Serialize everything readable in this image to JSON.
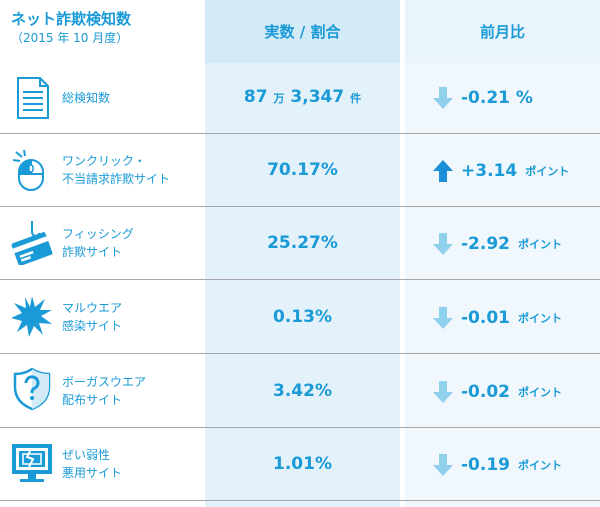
{
  "header": {
    "title": "ネット詐欺検知数",
    "subtitle": "（2015 年 10 月度）",
    "col2": "実数 / 割合",
    "col3": "前月比"
  },
  "rows": [
    {
      "label_line1": "総検知数",
      "label_line2": "",
      "icon": "document-icon",
      "value_main": "87",
      "value_unit1": "万",
      "value_rest": "3,347",
      "value_unit2": "件",
      "direction": "down",
      "change": "-0.21 %",
      "change_unit": ""
    },
    {
      "label_line1": "ワンクリック・",
      "label_line2": "不当請求詐欺サイト",
      "icon": "mouse-click-icon",
      "value": "70.17%",
      "direction": "up",
      "change": "+3.14",
      "change_unit": "ポイント"
    },
    {
      "label_line1": "フィッシング",
      "label_line2": "詐欺サイト",
      "icon": "credit-card-hook-icon",
      "value": "25.27%",
      "direction": "down",
      "change": "-2.92",
      "change_unit": "ポイント"
    },
    {
      "label_line1": "マルウエア",
      "label_line2": "感染サイト",
      "icon": "malware-burst-icon",
      "value": "0.13%",
      "direction": "down",
      "change": "-0.01",
      "change_unit": "ポイント"
    },
    {
      "label_line1": "ボーガスウエア",
      "label_line2": "配布サイト",
      "icon": "question-shield-icon",
      "value": "3.42%",
      "direction": "down",
      "change": "-0.02",
      "change_unit": "ポイント"
    },
    {
      "label_line1": "ぜい弱性",
      "label_line2": "悪用サイト",
      "icon": "broken-monitor-icon",
      "value": "1.01%",
      "direction": "down",
      "change": "-0.19",
      "change_unit": "ポイント"
    }
  ],
  "colors": {
    "accent": "#1a9ad6",
    "arrow_down": "#8fd0ec",
    "arrow_up": "#1a8fd6",
    "col2_bg": "#e3f1fa",
    "col3_bg": "#f1f8fd"
  }
}
